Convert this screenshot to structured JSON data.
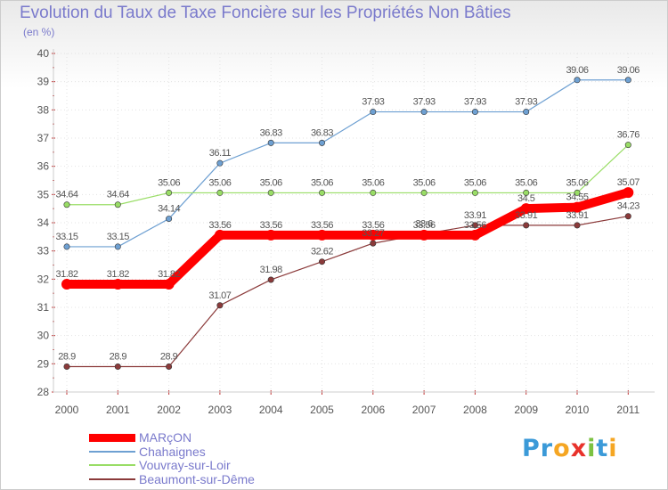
{
  "chart_data": {
    "type": "line",
    "title": "Evolution du Taux de Taxe Foncière sur les Propriétés Non Bâties",
    "ylabel": "(en %)",
    "xlabel": "",
    "ylim": [
      28,
      40
    ],
    "yticks": [
      "28",
      "29",
      "30",
      "31",
      "32",
      "33",
      "34",
      "35",
      "36",
      "37",
      "38",
      "39",
      "40"
    ],
    "categories": [
      "2000",
      "2001",
      "2002",
      "2003",
      "2004",
      "2005",
      "2006",
      "2007",
      "2008",
      "2009",
      "2010",
      "2011"
    ],
    "series": [
      {
        "name": "MARçON",
        "color": "#ff0000",
        "width": 10,
        "values": [
          31.82,
          31.82,
          31.82,
          33.56,
          33.56,
          33.56,
          33.56,
          33.56,
          33.56,
          34.5,
          34.55,
          35.07
        ],
        "labels": [
          "31.82",
          "31.82",
          "31.82",
          "33.56",
          "33.56",
          "33.56",
          "33.56",
          "33.56",
          "33.56",
          "34.5",
          "34.55",
          "35.07"
        ]
      },
      {
        "name": "Chahaignes",
        "color": "#6ea0d2",
        "width": 1.2,
        "values": [
          33.15,
          33.15,
          34.14,
          36.11,
          36.83,
          36.83,
          37.93,
          37.93,
          37.93,
          37.93,
          39.06,
          39.06
        ],
        "labels": [
          "33.15",
          "33.15",
          "34.14",
          "36.11",
          "36.83",
          "36.83",
          "37.93",
          "37.93",
          "37.93",
          "37.93",
          "39.06",
          "39.06"
        ]
      },
      {
        "name": "Vouvray-sur-Loir",
        "color": "#99dd66",
        "width": 1.2,
        "values": [
          34.64,
          34.64,
          35.06,
          35.06,
          35.06,
          35.06,
          35.06,
          35.06,
          35.06,
          35.06,
          35.06,
          36.76
        ],
        "labels": [
          "34.64",
          "34.64",
          "35.06",
          "35.06",
          "35.06",
          "35.06",
          "35.06",
          "35.06",
          "35.06",
          "35.06",
          "35.06",
          "36.76"
        ]
      },
      {
        "name": "Beaumont-sur-Dême",
        "color": "#8b3a3a",
        "width": 1.2,
        "values": [
          28.9,
          28.9,
          28.9,
          31.07,
          31.98,
          32.62,
          33.27,
          33.6,
          33.91,
          33.91,
          33.91,
          34.23
        ],
        "labels": [
          "28.9",
          "28.9",
          "28.9",
          "31.07",
          "31.98",
          "32.62",
          "33.27",
          "33.6",
          "33.91",
          "33.91",
          "33.91",
          "34.23"
        ]
      }
    ],
    "grid": true,
    "legend": "bottom-left"
  },
  "branding": {
    "logo_letters": [
      "P",
      "r",
      "o",
      "x",
      "i",
      "t",
      "i"
    ],
    "logo_colors": [
      "#3b9ad8",
      "#3b9ad8",
      "#f5a623",
      "#e8322b",
      "#7cc242",
      "#3b9ad8",
      "#f5a623"
    ]
  }
}
